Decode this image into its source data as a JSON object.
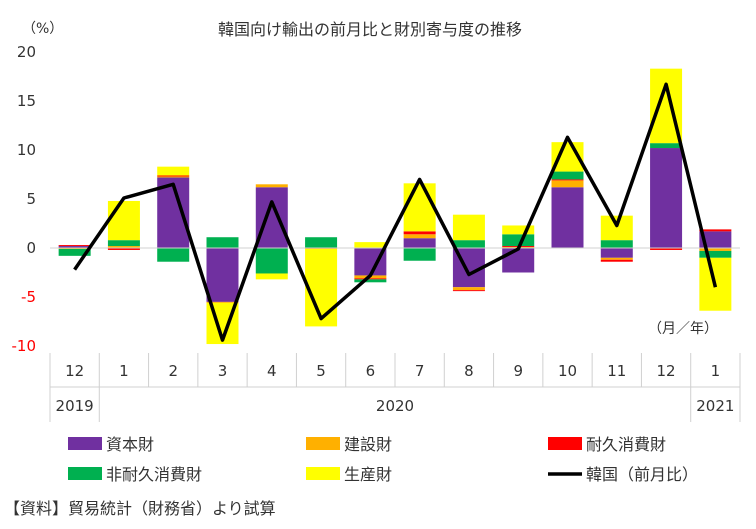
{
  "chart_data": {
    "type": "bar",
    "title": "韓国向け輸出の前月比と財別寄与度の推移",
    "y_unit_label": "（%）",
    "x_unit_label": "（月／年）",
    "ylim": [
      -10,
      20
    ],
    "y_ticks": [
      "20",
      "15",
      "10",
      "5",
      "0",
      "-5",
      "-10"
    ],
    "categories": [
      "12",
      "1",
      "2",
      "3",
      "4",
      "5",
      "6",
      "7",
      "8",
      "9",
      "10",
      "11",
      "12",
      "1"
    ],
    "year_labels": [
      "2019",
      "2020",
      "2021"
    ],
    "stacked": true,
    "grid": false,
    "legend_position": "bottom",
    "series": [
      {
        "name": "資本財",
        "type": "bar",
        "color": "#7030A0",
        "values": [
          0.2,
          0.0,
          7.2,
          -5.5,
          6.2,
          0.0,
          -2.8,
          1.0,
          -4.0,
          -2.5,
          6.2,
          -1.0,
          10.2,
          1.7
        ]
      },
      {
        "name": "建設財",
        "type": "bar",
        "color": "#FFB000",
        "values": [
          -0.1,
          0.2,
          0.1,
          -0.1,
          0.3,
          -0.1,
          -0.3,
          0.4,
          -0.3,
          0.1,
          0.7,
          -0.2,
          0.0,
          -0.3
        ]
      },
      {
        "name": "耐久消費財",
        "type": "bar",
        "color": "#FF0000",
        "values": [
          0.1,
          -0.2,
          0.1,
          0.0,
          0.0,
          0.0,
          -0.1,
          0.3,
          -0.1,
          0.1,
          0.1,
          -0.2,
          -0.2,
          0.2
        ]
      },
      {
        "name": "非耐久消費財",
        "type": "bar",
        "color": "#00B050",
        "values": [
          -0.7,
          0.6,
          -1.4,
          1.1,
          -2.6,
          1.1,
          -0.3,
          -1.3,
          0.8,
          1.2,
          0.8,
          0.8,
          0.5,
          -0.7
        ]
      },
      {
        "name": "生産財",
        "type": "bar",
        "color": "#FFFF00",
        "values": [
          0.0,
          4.0,
          0.9,
          -4.2,
          -0.6,
          -7.9,
          0.6,
          4.9,
          2.6,
          0.9,
          3.0,
          2.5,
          7.6,
          -5.4
        ]
      },
      {
        "name": "韓国（前月比）",
        "type": "line",
        "color": "#000000",
        "values": [
          -2.2,
          5.1,
          6.5,
          -9.4,
          4.7,
          -7.2,
          -2.8,
          7.0,
          -2.7,
          -0.1,
          11.3,
          2.3,
          16.7,
          -4.0
        ]
      }
    ]
  },
  "source_note": "【資料】貿易統計（財務省）より試算"
}
